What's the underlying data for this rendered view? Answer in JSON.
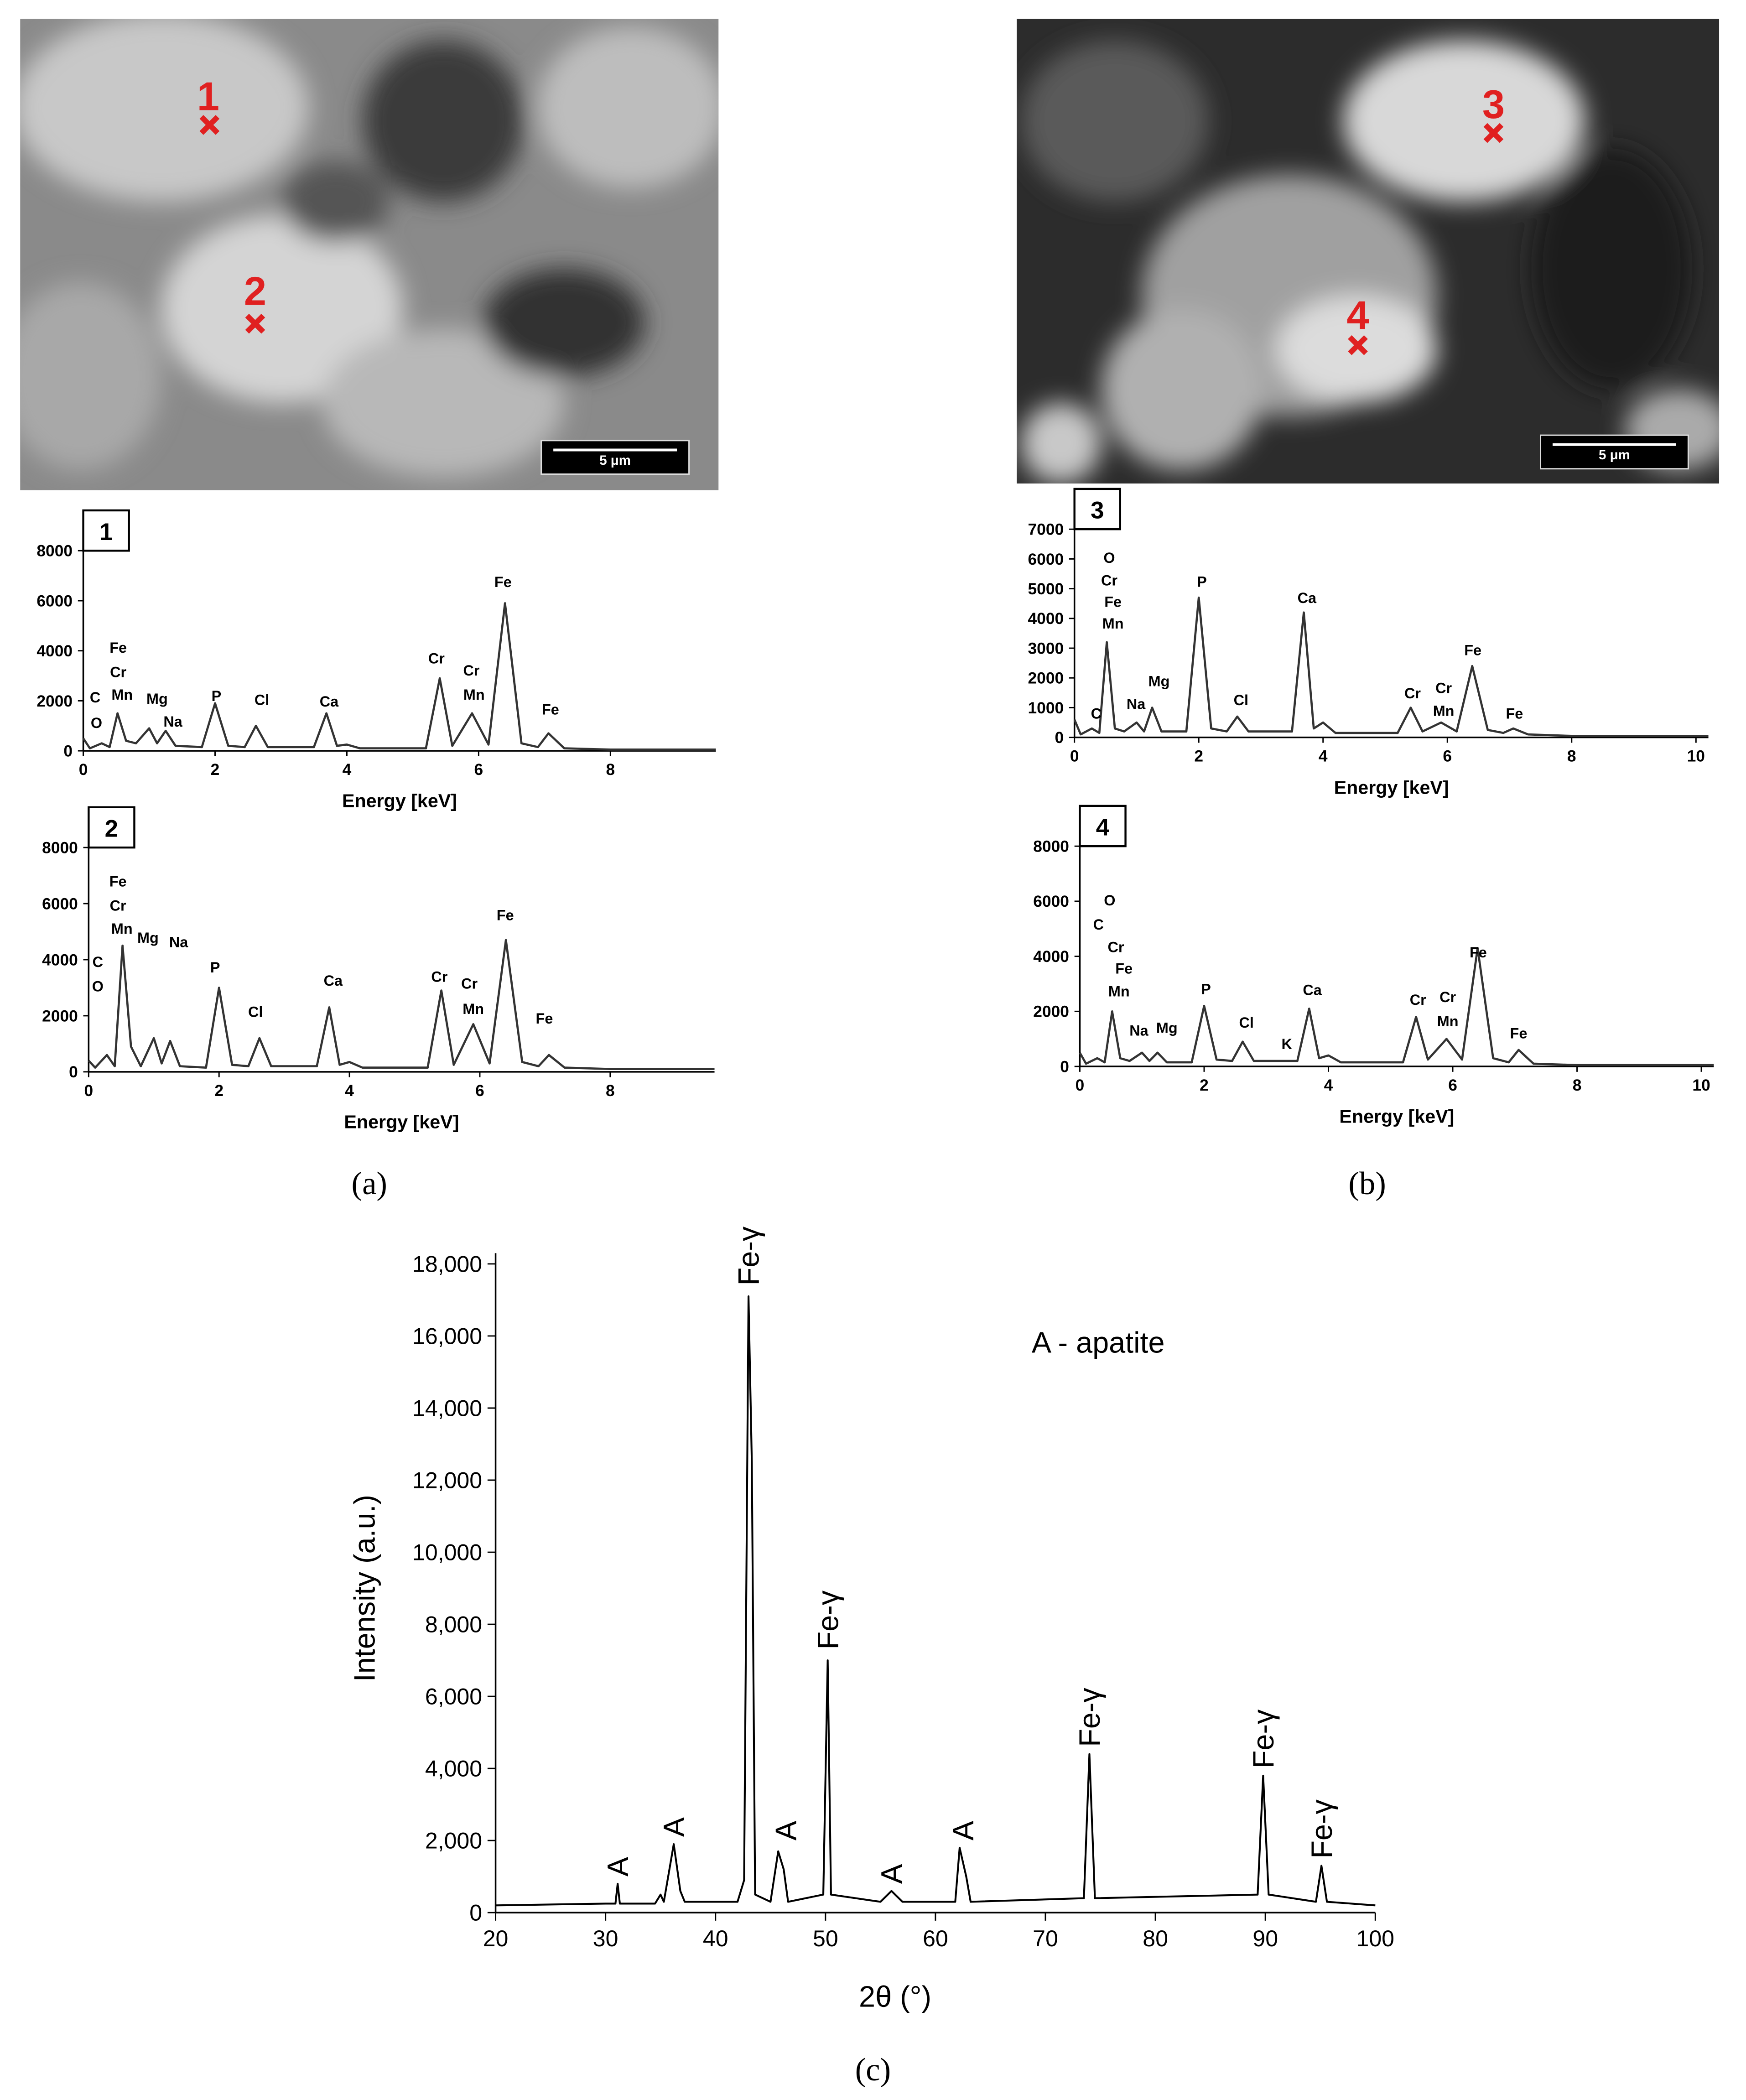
{
  "figure": {
    "panel_labels": [
      "(a)",
      "(b)",
      "(c)"
    ],
    "images": [
      {
        "markers": [
          "1",
          "2"
        ],
        "scale_bar": "5 μm"
      },
      {
        "markers": [
          "3",
          "4"
        ],
        "scale_bar": "5 μm"
      }
    ]
  },
  "chart_data": [
    {
      "type": "line",
      "title": "1",
      "xlabel": "Energy [keV]",
      "color": "#333333",
      "xlim": [
        0,
        9.6
      ],
      "ylim": [
        0,
        8000
      ],
      "xticks": [
        0,
        2,
        4,
        6,
        8
      ],
      "yticks": [
        0,
        2000,
        4000,
        6000,
        8000
      ],
      "x": [
        0,
        0.1,
        0.28,
        0.4,
        0.52,
        0.65,
        0.8,
        1.0,
        1.12,
        1.25,
        1.4,
        1.8,
        2.0,
        2.2,
        2.45,
        2.62,
        2.8,
        3.5,
        3.69,
        3.85,
        4.0,
        4.2,
        5.2,
        5.41,
        5.6,
        5.9,
        6.15,
        6.4,
        6.65,
        6.9,
        7.06,
        7.3,
        8,
        9.6
      ],
      "values": [
        500,
        100,
        300,
        150,
        1500,
        400,
        300,
        900,
        300,
        800,
        200,
        150,
        1900,
        200,
        150,
        1000,
        150,
        150,
        1500,
        200,
        250,
        100,
        100,
        2900,
        200,
        1500,
        250,
        5900,
        300,
        150,
        700,
        100,
        50,
        50
      ],
      "annotations": [
        {
          "text": "C",
          "x": 0.18,
          "y": 1930
        },
        {
          "text": "O",
          "x": 0.2,
          "y": 910
        },
        {
          "text": "Fe",
          "x": 0.53,
          "y": 3920
        },
        {
          "text": "Cr",
          "x": 0.53,
          "y": 2950
        },
        {
          "text": "Mn",
          "x": 0.59,
          "y": 2040
        },
        {
          "text": "Mg",
          "x": 1.12,
          "y": 1880
        },
        {
          "text": "Na",
          "x": 1.36,
          "y": 970
        },
        {
          "text": "P",
          "x": 2.02,
          "y": 1990
        },
        {
          "text": "Cl",
          "x": 2.71,
          "y": 1830
        },
        {
          "text": "Ca",
          "x": 3.73,
          "y": 1770
        },
        {
          "text": "Cr",
          "x": 5.36,
          "y": 3490
        },
        {
          "text": "Cr",
          "x": 5.89,
          "y": 3010
        },
        {
          "text": "Mn",
          "x": 5.93,
          "y": 2040
        },
        {
          "text": "Fe",
          "x": 6.37,
          "y": 6550
        },
        {
          "text": "Fe",
          "x": 7.09,
          "y": 1450
        }
      ]
    },
    {
      "type": "line",
      "title": "2",
      "xlabel": "Energy [keV]",
      "color": "#333333",
      "xlim": [
        0,
        9.6
      ],
      "ylim": [
        0,
        8000
      ],
      "xticks": [
        0,
        2,
        4,
        6,
        8
      ],
      "yticks": [
        0,
        2000,
        4000,
        6000,
        8000
      ],
      "x": [
        0,
        0.1,
        0.28,
        0.4,
        0.52,
        0.65,
        0.8,
        1.0,
        1.12,
        1.25,
        1.4,
        1.8,
        2.0,
        2.2,
        2.45,
        2.62,
        2.8,
        3.5,
        3.69,
        3.85,
        4.0,
        4.2,
        5.2,
        5.41,
        5.6,
        5.9,
        6.15,
        6.4,
        6.65,
        6.9,
        7.06,
        7.3,
        8,
        9.6
      ],
      "values": [
        400,
        150,
        600,
        200,
        4500,
        900,
        200,
        1200,
        300,
        1100,
        200,
        150,
        3000,
        250,
        200,
        1200,
        200,
        200,
        2300,
        250,
        350,
        150,
        150,
        2900,
        250,
        1700,
        300,
        4700,
        350,
        200,
        600,
        150,
        100,
        100
      ],
      "annotations": [
        {
          "text": "C",
          "x": 0.14,
          "y": 3740
        },
        {
          "text": "O",
          "x": 0.14,
          "y": 2870
        },
        {
          "text": "Fe",
          "x": 0.45,
          "y": 6610
        },
        {
          "text": "Cr",
          "x": 0.45,
          "y": 5750
        },
        {
          "text": "Mn",
          "x": 0.51,
          "y": 4930
        },
        {
          "text": "Mg",
          "x": 0.91,
          "y": 4600
        },
        {
          "text": "Na",
          "x": 1.38,
          "y": 4450
        },
        {
          "text": "P",
          "x": 1.94,
          "y": 3540
        },
        {
          "text": "Cl",
          "x": 2.56,
          "y": 1960
        },
        {
          "text": "Ca",
          "x": 3.75,
          "y": 3070
        },
        {
          "text": "Cr",
          "x": 5.38,
          "y": 3210
        },
        {
          "text": "Cr",
          "x": 5.84,
          "y": 2970
        },
        {
          "text": "Mn",
          "x": 5.9,
          "y": 2060
        },
        {
          "text": "Fe",
          "x": 6.39,
          "y": 5410
        },
        {
          "text": "Fe",
          "x": 6.99,
          "y": 1720
        }
      ]
    },
    {
      "type": "line",
      "title": "3",
      "xlabel": "Energy [keV]",
      "color": "#333333",
      "xlim": [
        0,
        10.2
      ],
      "ylim": [
        0,
        7000
      ],
      "xticks": [
        0,
        2,
        4,
        6,
        8,
        10
      ],
      "yticks": [
        0,
        1000,
        2000,
        3000,
        4000,
        5000,
        6000,
        7000
      ],
      "x": [
        0,
        0.1,
        0.28,
        0.4,
        0.52,
        0.65,
        0.8,
        1.0,
        1.12,
        1.25,
        1.4,
        1.8,
        2.0,
        2.2,
        2.45,
        2.62,
        2.8,
        3.5,
        3.69,
        3.85,
        4.0,
        4.2,
        5.2,
        5.41,
        5.6,
        5.9,
        6.15,
        6.4,
        6.65,
        6.9,
        7.06,
        7.3,
        8,
        10.2
      ],
      "values": [
        600,
        100,
        300,
        150,
        3200,
        300,
        200,
        500,
        200,
        1000,
        200,
        200,
        4700,
        300,
        200,
        700,
        200,
        200,
        4200,
        300,
        500,
        150,
        150,
        1000,
        200,
        500,
        200,
        2400,
        250,
        150,
        300,
        100,
        50,
        50
      ],
      "annotations": [
        {
          "text": "O",
          "x": 0.56,
          "y": 5870
        },
        {
          "text": "Cr",
          "x": 0.56,
          "y": 5110
        },
        {
          "text": "Fe",
          "x": 0.62,
          "y": 4390
        },
        {
          "text": "Mn",
          "x": 0.62,
          "y": 3660
        },
        {
          "text": "C",
          "x": 0.35,
          "y": 630
        },
        {
          "text": "Na",
          "x": 0.99,
          "y": 950
        },
        {
          "text": "Mg",
          "x": 1.36,
          "y": 1720
        },
        {
          "text": "P",
          "x": 2.05,
          "y": 5060
        },
        {
          "text": "Cl",
          "x": 2.68,
          "y": 1080
        },
        {
          "text": "Ca",
          "x": 3.74,
          "y": 4520
        },
        {
          "text": "Cr",
          "x": 5.44,
          "y": 1310
        },
        {
          "text": "Cr",
          "x": 5.94,
          "y": 1490
        },
        {
          "text": "Mn",
          "x": 5.94,
          "y": 720
        },
        {
          "text": "Fe",
          "x": 6.41,
          "y": 2760
        },
        {
          "text": "Fe",
          "x": 7.08,
          "y": 630
        }
      ]
    },
    {
      "type": "line",
      "title": "4",
      "xlabel": "Energy [keV]",
      "color": "#333333",
      "xlim": [
        0,
        10.2
      ],
      "ylim": [
        0,
        8000
      ],
      "xticks": [
        0,
        2,
        4,
        6,
        8,
        10
      ],
      "yticks": [
        0,
        2000,
        4000,
        6000,
        8000
      ],
      "x": [
        0,
        0.1,
        0.28,
        0.4,
        0.52,
        0.65,
        0.8,
        1.0,
        1.12,
        1.25,
        1.4,
        1.8,
        2.0,
        2.2,
        2.45,
        2.62,
        2.8,
        3.5,
        3.69,
        3.85,
        4.0,
        4.2,
        5.2,
        5.41,
        5.6,
        5.9,
        6.15,
        6.4,
        6.65,
        6.9,
        7.06,
        7.3,
        8,
        10.2
      ],
      "values": [
        500,
        100,
        300,
        150,
        2000,
        300,
        200,
        500,
        200,
        500,
        150,
        150,
        2200,
        250,
        200,
        900,
        200,
        200,
        2100,
        300,
        400,
        150,
        150,
        1800,
        250,
        1000,
        250,
        4300,
        300,
        150,
        600,
        100,
        50,
        50
      ],
      "annotations": [
        {
          "text": "O",
          "x": 0.48,
          "y": 5850
        },
        {
          "text": "C",
          "x": 0.3,
          "y": 4970
        },
        {
          "text": "Cr",
          "x": 0.58,
          "y": 4150
        },
        {
          "text": "Fe",
          "x": 0.71,
          "y": 3370
        },
        {
          "text": "Mn",
          "x": 0.63,
          "y": 2540
        },
        {
          "text": "Na",
          "x": 0.95,
          "y": 1120
        },
        {
          "text": "Mg",
          "x": 1.4,
          "y": 1220
        },
        {
          "text": "P",
          "x": 2.03,
          "y": 2630
        },
        {
          "text": "Cl",
          "x": 2.68,
          "y": 1410
        },
        {
          "text": "K",
          "x": 3.33,
          "y": 630
        },
        {
          "text": "Ca",
          "x": 3.74,
          "y": 2590
        },
        {
          "text": "Cr",
          "x": 5.44,
          "y": 2240
        },
        {
          "text": "Cr",
          "x": 5.92,
          "y": 2340
        },
        {
          "text": "Mn",
          "x": 5.92,
          "y": 1460
        },
        {
          "text": "Fe",
          "x": 6.41,
          "y": 3960
        },
        {
          "text": "Fe",
          "x": 7.06,
          "y": 1020
        }
      ]
    },
    {
      "type": "line",
      "xlabel": "2θ (°)",
      "ylabel": "Intensity (a.u.)",
      "color": "#000000",
      "xlim": [
        20,
        100
      ],
      "ylim": [
        0,
        18000
      ],
      "xticks": [
        20,
        30,
        40,
        50,
        60,
        70,
        80,
        90,
        100
      ],
      "yticks": [
        0,
        {
          "value": 2000,
          "label": "2,000"
        },
        {
          "value": 4000,
          "label": "4,000"
        },
        {
          "value": 6000,
          "label": "6,000"
        },
        {
          "value": 8000,
          "label": "8,000"
        },
        {
          "value": 10000,
          "label": "10,000"
        },
        {
          "value": 12000,
          "label": "12,000"
        },
        {
          "value": 14000,
          "label": "14,000"
        },
        {
          "value": 16000,
          "label": "16,000"
        },
        {
          "value": 18000,
          "label": "18,000"
        }
      ],
      "x": [
        20,
        30,
        30.9,
        31.1,
        31.3,
        34.5,
        35,
        35.3,
        36.2,
        36.8,
        37.2,
        42,
        42.6,
        43.0,
        43.3,
        43.6,
        45,
        45.7,
        46.2,
        46.6,
        49.8,
        50.2,
        50.5,
        55,
        56,
        57,
        61.8,
        62.2,
        62.8,
        63.2,
        73.5,
        74,
        74.5,
        89.3,
        89.8,
        90.3,
        94.6,
        95.1,
        95.6,
        100
      ],
      "values": [
        200,
        250,
        250,
        800,
        250,
        250,
        500,
        300,
        1900,
        600,
        300,
        300,
        900,
        17100,
        12500,
        500,
        300,
        1700,
        1200,
        300,
        500,
        7000,
        500,
        300,
        600,
        300,
        300,
        1800,
        1000,
        300,
        400,
        4400,
        400,
        500,
        3800,
        500,
        300,
        1300,
        300,
        200
      ],
      "annotations": [
        {
          "text": "Fe-γ",
          "x": 43.0,
          "y": 17400,
          "rotate": -90
        },
        {
          "text": "Fe-γ",
          "x": 50.2,
          "y": 7300,
          "rotate": -90
        },
        {
          "text": "Fe-γ",
          "x": 74.0,
          "y": 4600,
          "rotate": -90
        },
        {
          "text": "Fe-γ",
          "x": 89.8,
          "y": 4000,
          "rotate": -90
        },
        {
          "text": "Fe-γ",
          "x": 95.1,
          "y": 1500,
          "rotate": -90
        },
        {
          "text": "A",
          "x": 31.1,
          "y": 1000,
          "rotate": -90
        },
        {
          "text": "A",
          "x": 36.2,
          "y": 2100,
          "rotate": -90
        },
        {
          "text": "A",
          "x": 46.4,
          "y": 2000,
          "rotate": -90
        },
        {
          "text": "A",
          "x": 56,
          "y": 800,
          "rotate": -90
        },
        {
          "text": "A",
          "x": 62.5,
          "y": 2000,
          "rotate": -90
        },
        {
          "text": "A - apatite",
          "x": 74.8,
          "y": 15540
        }
      ]
    }
  ]
}
